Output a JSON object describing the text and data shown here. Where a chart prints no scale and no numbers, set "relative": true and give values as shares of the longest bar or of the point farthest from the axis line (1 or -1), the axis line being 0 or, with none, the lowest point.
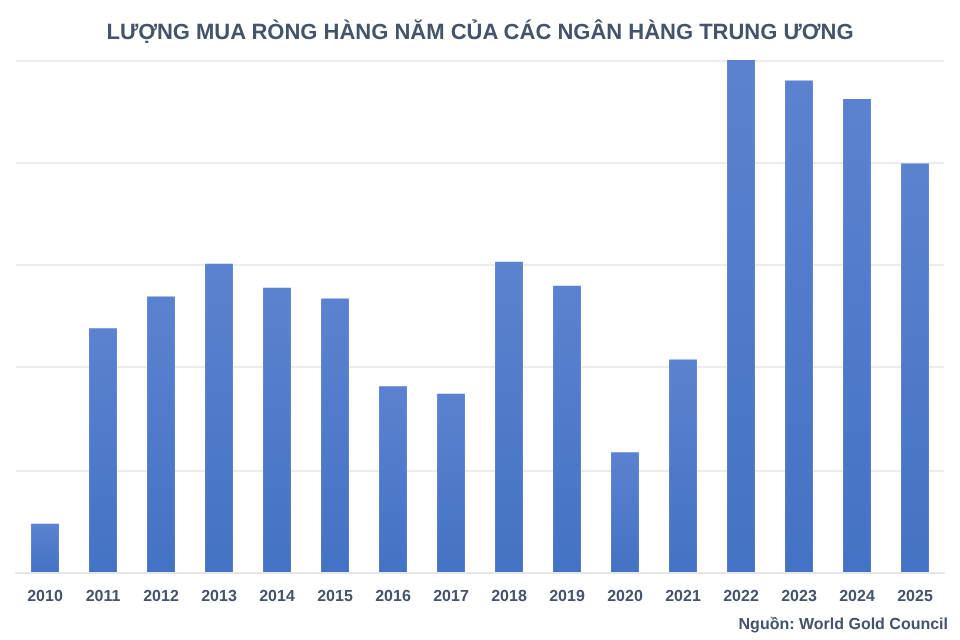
{
  "chart_data": {
    "type": "bar",
    "title": "LƯỢNG MUA RÒNG HÀNG NĂM CỦA CÁC NGÂN HÀNG TRUNG ƯƠNG",
    "categories": [
      "2010",
      "2011",
      "2012",
      "2013",
      "2014",
      "2015",
      "2016",
      "2017",
      "2018",
      "2019",
      "2020",
      "2021",
      "2022",
      "2023",
      "2024",
      "2025"
    ],
    "values": [
      0.094,
      0.476,
      0.538,
      0.602,
      0.555,
      0.534,
      0.363,
      0.348,
      0.606,
      0.559,
      0.234,
      0.415,
      1,
      0.96,
      0.924,
      0.798
    ],
    "color": "#4472c4",
    "relative": true,
    "grid": "y",
    "annotations": [
      "Nguồn: World Gold Council"
    ]
  }
}
